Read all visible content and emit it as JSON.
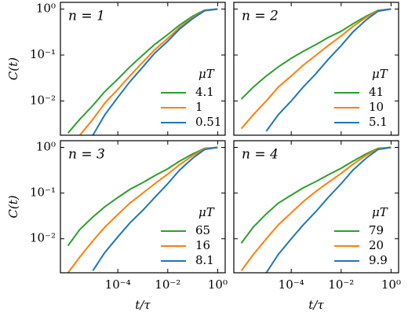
{
  "chart_data": [
    {
      "type": "line",
      "annotation": "n = 1",
      "ylabel": "C(t)",
      "legend_title": "μT",
      "xscale": "log",
      "yscale": "log",
      "xlim": [
        5e-07,
        2
      ],
      "ylim": [
        0.0018,
        1.4
      ],
      "xticks": [
        {
          "value": 0.0001,
          "label": "10⁻⁴"
        },
        {
          "value": 0.01,
          "label": "10⁻²"
        },
        {
          "value": 1,
          "label": "10⁰"
        }
      ],
      "yticks": [
        {
          "value": 0.01,
          "label": "10⁻²"
        },
        {
          "value": 0.1,
          "label": "10⁻¹"
        },
        {
          "value": 1,
          "label": "10⁰"
        }
      ],
      "x": [
        1e-06,
        3e-06,
        1e-05,
        3e-05,
        0.0001,
        0.0003,
        0.001,
        0.003,
        0.01,
        0.03,
        0.1,
        0.3,
        1
      ],
      "series": [
        {
          "name": "4.1",
          "color": "#2ca02c",
          "values": [
            0.002,
            0.004,
            0.008,
            0.016,
            0.03,
            0.055,
            0.1,
            0.17,
            0.28,
            0.45,
            0.7,
            0.95,
            1
          ]
        },
        {
          "name": "1",
          "color": "#ff7f0e",
          "values": [
            null,
            0.0018,
            0.004,
            0.009,
            0.018,
            0.035,
            0.07,
            0.13,
            0.23,
            0.4,
            0.65,
            0.93,
            1
          ]
        },
        {
          "name": "0.51",
          "color": "#1f77b4",
          "values": [
            null,
            null,
            0.0018,
            0.005,
            0.012,
            0.026,
            0.055,
            0.11,
            0.2,
            0.37,
            0.62,
            0.92,
            1
          ]
        }
      ]
    },
    {
      "type": "line",
      "annotation": "n = 2",
      "legend_title": "μT",
      "xscale": "log",
      "yscale": "log",
      "xlim": [
        5e-07,
        2
      ],
      "ylim": [
        0.0018,
        1.4
      ],
      "xticks": [
        0.0001,
        0.01,
        1
      ],
      "yticks": [
        0.01,
        0.1,
        1
      ],
      "x": [
        1e-06,
        3e-06,
        1e-05,
        3e-05,
        0.0001,
        0.0003,
        0.001,
        0.003,
        0.01,
        0.03,
        0.1,
        0.3,
        1
      ],
      "series": [
        {
          "name": "41",
          "color": "#2ca02c",
          "values": [
            0.011,
            0.02,
            0.035,
            0.055,
            0.085,
            0.12,
            0.17,
            0.24,
            0.33,
            0.48,
            0.7,
            0.94,
            1
          ]
        },
        {
          "name": "10",
          "color": "#ff7f0e",
          "values": [
            0.0025,
            0.005,
            0.01,
            0.02,
            0.035,
            0.06,
            0.1,
            0.16,
            0.26,
            0.42,
            0.66,
            0.93,
            1
          ]
        },
        {
          "name": "5.1",
          "color": "#1f77b4",
          "values": [
            null,
            null,
            0.0022,
            0.005,
            0.01,
            0.02,
            0.04,
            0.08,
            0.16,
            0.32,
            0.58,
            0.9,
            1
          ]
        }
      ]
    },
    {
      "type": "line",
      "annotation": "n = 3",
      "ylabel": "C(t)",
      "xlabel": "t/τ",
      "legend_title": "μT",
      "xscale": "log",
      "yscale": "log",
      "xlim": [
        5e-07,
        2
      ],
      "ylim": [
        0.0018,
        1.4
      ],
      "xticks": [
        {
          "value": 0.0001,
          "label": "10⁻⁴"
        },
        {
          "value": 0.01,
          "label": "10⁻²"
        },
        {
          "value": 1,
          "label": "10⁰"
        }
      ],
      "yticks": [
        {
          "value": 0.01,
          "label": "10⁻²"
        },
        {
          "value": 0.1,
          "label": "10⁻¹"
        },
        {
          "value": 1,
          "label": "10⁰"
        }
      ],
      "x": [
        1e-06,
        3e-06,
        1e-05,
        3e-05,
        0.0001,
        0.0003,
        0.001,
        0.003,
        0.01,
        0.03,
        0.1,
        0.3,
        1
      ],
      "series": [
        {
          "name": "65",
          "color": "#2ca02c",
          "values": [
            0.007,
            0.016,
            0.03,
            0.05,
            0.08,
            0.12,
            0.17,
            0.24,
            0.34,
            0.5,
            0.72,
            0.95,
            1
          ]
        },
        {
          "name": "16",
          "color": "#ff7f0e",
          "values": [
            0.0018,
            0.004,
            0.009,
            0.018,
            0.034,
            0.06,
            0.1,
            0.16,
            0.26,
            0.42,
            0.66,
            0.93,
            1
          ]
        },
        {
          "name": "8.1",
          "color": "#1f77b4",
          "values": [
            null,
            null,
            0.002,
            0.005,
            0.011,
            0.022,
            0.042,
            0.08,
            0.16,
            0.32,
            0.58,
            0.9,
            1
          ]
        }
      ]
    },
    {
      "type": "line",
      "annotation": "n = 4",
      "xlabel": "t/τ",
      "legend_title": "μT",
      "xscale": "log",
      "yscale": "log",
      "xlim": [
        5e-07,
        2
      ],
      "ylim": [
        0.0018,
        1.4
      ],
      "xticks": [
        {
          "value": 0.0001,
          "label": "10⁻⁴"
        },
        {
          "value": 0.01,
          "label": "10⁻²"
        },
        {
          "value": 1,
          "label": "10⁰"
        }
      ],
      "yticks": [
        0.01,
        0.1,
        1
      ],
      "x": [
        1e-06,
        3e-06,
        1e-05,
        3e-05,
        0.0001,
        0.0003,
        0.001,
        0.003,
        0.01,
        0.03,
        0.1,
        0.3,
        1
      ],
      "series": [
        {
          "name": "79",
          "color": "#2ca02c",
          "values": [
            0.008,
            0.018,
            0.035,
            0.06,
            0.09,
            0.13,
            0.18,
            0.25,
            0.35,
            0.5,
            0.72,
            0.95,
            1
          ]
        },
        {
          "name": "20",
          "color": "#ff7f0e",
          "values": [
            0.002,
            0.0045,
            0.01,
            0.02,
            0.037,
            0.065,
            0.11,
            0.17,
            0.27,
            0.43,
            0.67,
            0.93,
            1
          ]
        },
        {
          "name": "9.9",
          "color": "#1f77b4",
          "values": [
            null,
            null,
            0.0018,
            0.0045,
            0.01,
            0.02,
            0.04,
            0.08,
            0.16,
            0.32,
            0.58,
            0.9,
            1
          ]
        }
      ]
    }
  ]
}
